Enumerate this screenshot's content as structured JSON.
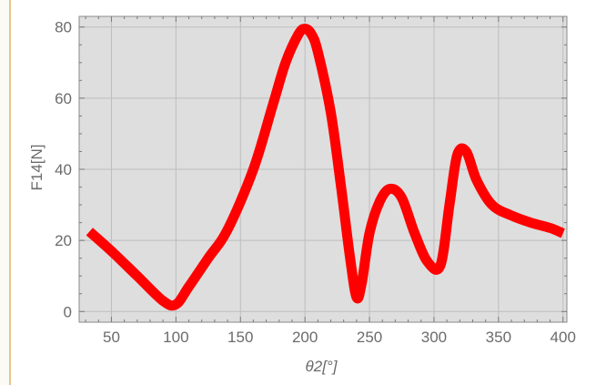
{
  "chart_data": {
    "type": "line",
    "xlabel": "θ2[°]",
    "ylabel": "F14[N]",
    "xlim": [
      25,
      403
    ],
    "ylim": [
      -3,
      83
    ],
    "x_ticks": [
      50,
      100,
      150,
      200,
      250,
      300,
      350,
      400
    ],
    "y_ticks": [
      0,
      20,
      40,
      60,
      80
    ],
    "grid": true,
    "background": "#dedede",
    "series": [
      {
        "color": "#ff0000",
        "x": [
          33,
          50,
          70,
          90,
          100,
          110,
          125,
          140,
          160,
          175,
          185,
          195,
          200,
          205,
          210,
          220,
          228,
          235,
          240,
          244,
          250,
          258,
          266,
          275,
          285,
          295,
          305,
          312,
          318,
          325,
          333,
          345,
          360,
          375,
          390,
          400
        ],
        "y": [
          22.5,
          17,
          10,
          3,
          2,
          7,
          15,
          23,
          40,
          58,
          70,
          78,
          79.5,
          78,
          73,
          56,
          35,
          15,
          4,
          8,
          22,
          31,
          34.5,
          32,
          22,
          14,
          13,
          30,
          44,
          45,
          37,
          30,
          27,
          25,
          23.5,
          22
        ]
      }
    ]
  }
}
